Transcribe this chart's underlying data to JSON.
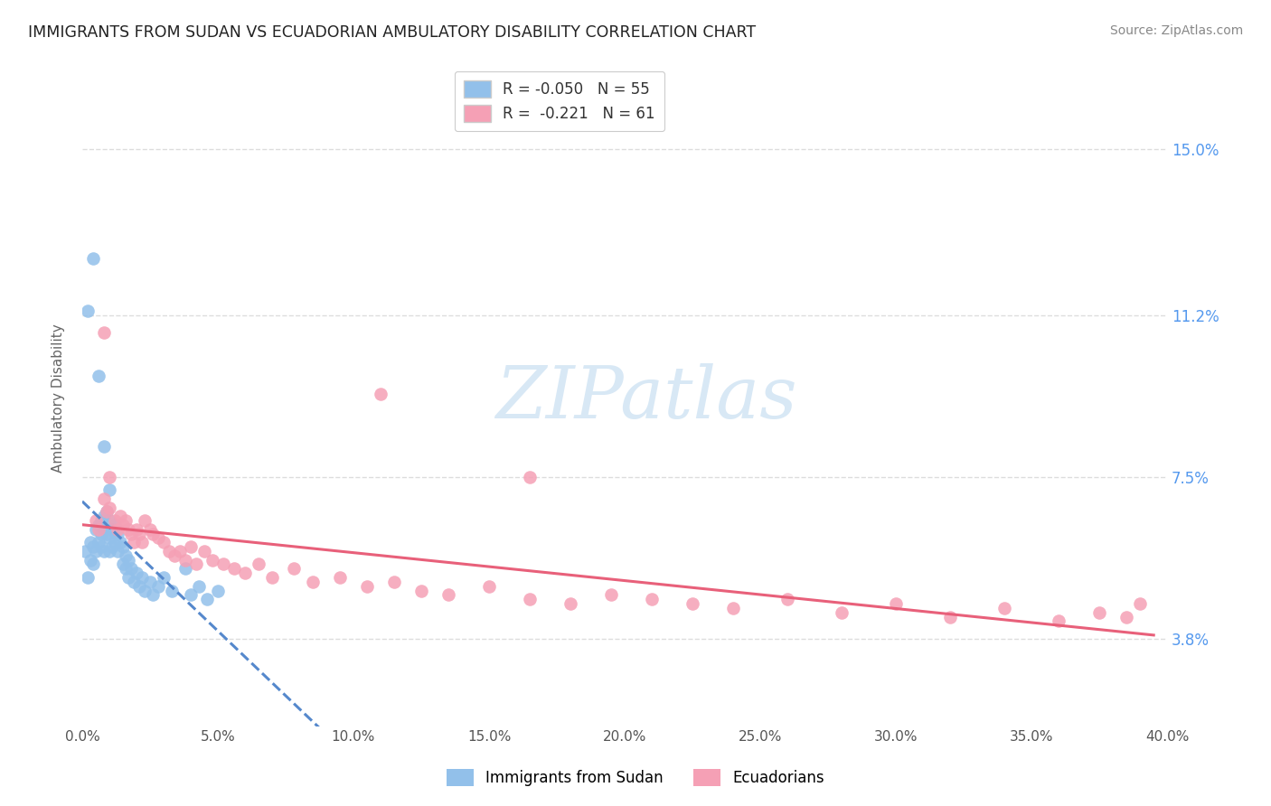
{
  "title": "IMMIGRANTS FROM SUDAN VS ECUADORIAN AMBULATORY DISABILITY CORRELATION CHART",
  "source": "Source: ZipAtlas.com",
  "ylabel": "Ambulatory Disability",
  "ytick_labels": [
    "3.8%",
    "7.5%",
    "11.2%",
    "15.0%"
  ],
  "ytick_values": [
    0.038,
    0.075,
    0.112,
    0.15
  ],
  "xlim": [
    0.0,
    0.4
  ],
  "ylim": [
    0.018,
    0.168
  ],
  "xtick_positions": [
    0.0,
    0.05,
    0.1,
    0.15,
    0.2,
    0.25,
    0.3,
    0.35,
    0.4
  ],
  "sudan_color": "#92c0ea",
  "ecuador_color": "#f5a0b5",
  "trendline_sudan_color": "#5588cc",
  "trendline_ecuador_color": "#e8607a",
  "sudan_points_x": [
    0.001,
    0.002,
    0.003,
    0.003,
    0.004,
    0.004,
    0.005,
    0.005,
    0.006,
    0.006,
    0.007,
    0.007,
    0.007,
    0.008,
    0.008,
    0.008,
    0.009,
    0.009,
    0.01,
    0.01,
    0.01,
    0.011,
    0.011,
    0.012,
    0.012,
    0.013,
    0.013,
    0.014,
    0.015,
    0.015,
    0.016,
    0.016,
    0.017,
    0.017,
    0.018,
    0.019,
    0.02,
    0.021,
    0.022,
    0.023,
    0.025,
    0.026,
    0.028,
    0.03,
    0.033,
    0.038,
    0.04,
    0.043,
    0.046,
    0.05,
    0.002,
    0.004,
    0.006,
    0.008,
    0.01
  ],
  "sudan_points_y": [
    0.058,
    0.052,
    0.06,
    0.056,
    0.059,
    0.055,
    0.063,
    0.058,
    0.064,
    0.06,
    0.065,
    0.062,
    0.059,
    0.066,
    0.063,
    0.058,
    0.067,
    0.062,
    0.065,
    0.061,
    0.058,
    0.063,
    0.059,
    0.064,
    0.06,
    0.062,
    0.058,
    0.06,
    0.059,
    0.055,
    0.057,
    0.054,
    0.056,
    0.052,
    0.054,
    0.051,
    0.053,
    0.05,
    0.052,
    0.049,
    0.051,
    0.048,
    0.05,
    0.052,
    0.049,
    0.054,
    0.048,
    0.05,
    0.047,
    0.049,
    0.113,
    0.125,
    0.098,
    0.082,
    0.072
  ],
  "ecuador_points_x": [
    0.005,
    0.006,
    0.008,
    0.009,
    0.01,
    0.012,
    0.013,
    0.014,
    0.015,
    0.016,
    0.017,
    0.018,
    0.019,
    0.02,
    0.021,
    0.022,
    0.023,
    0.025,
    0.026,
    0.028,
    0.03,
    0.032,
    0.034,
    0.036,
    0.038,
    0.04,
    0.042,
    0.045,
    0.048,
    0.052,
    0.056,
    0.06,
    0.065,
    0.07,
    0.078,
    0.085,
    0.095,
    0.105,
    0.115,
    0.125,
    0.135,
    0.15,
    0.165,
    0.18,
    0.195,
    0.21,
    0.225,
    0.24,
    0.26,
    0.28,
    0.3,
    0.32,
    0.34,
    0.36,
    0.375,
    0.385,
    0.39,
    0.008,
    0.01,
    0.11,
    0.165
  ],
  "ecuador_points_y": [
    0.065,
    0.063,
    0.07,
    0.067,
    0.068,
    0.065,
    0.063,
    0.066,
    0.064,
    0.065,
    0.063,
    0.062,
    0.06,
    0.063,
    0.062,
    0.06,
    0.065,
    0.063,
    0.062,
    0.061,
    0.06,
    0.058,
    0.057,
    0.058,
    0.056,
    0.059,
    0.055,
    0.058,
    0.056,
    0.055,
    0.054,
    0.053,
    0.055,
    0.052,
    0.054,
    0.051,
    0.052,
    0.05,
    0.051,
    0.049,
    0.048,
    0.05,
    0.047,
    0.046,
    0.048,
    0.047,
    0.046,
    0.045,
    0.047,
    0.044,
    0.046,
    0.043,
    0.045,
    0.042,
    0.044,
    0.043,
    0.046,
    0.108,
    0.075,
    0.094,
    0.075
  ],
  "watermark_text": "ZIPatlas",
  "watermark_color": "#d8e8f5",
  "background_color": "#ffffff",
  "grid_color": "#dddddd",
  "legend1_label": "R = -0.050   N = 55",
  "legend2_label": "R =  -0.221   N = 61",
  "bottom_legend1": "Immigrants from Sudan",
  "bottom_legend2": "Ecuadorians"
}
